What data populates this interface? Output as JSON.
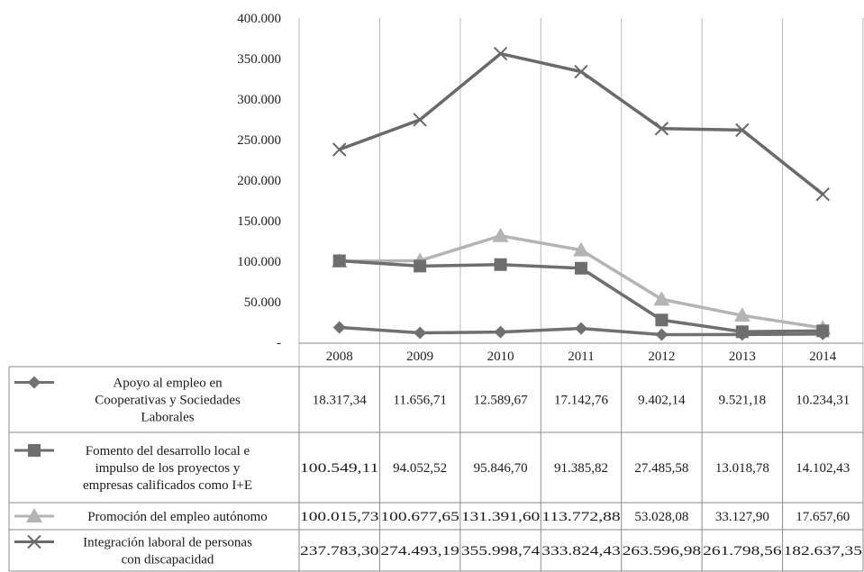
{
  "chart_data": {
    "type": "line",
    "title": "",
    "xlabel": "",
    "ylabel": "",
    "ylim": [
      0,
      400000
    ],
    "y_ticks": [
      "400.000",
      "350.000",
      "300.000",
      "250.000",
      "200.000",
      "150.000",
      "100.000",
      "50.000",
      "-"
    ],
    "y_tick_values": [
      400000,
      350000,
      300000,
      250000,
      200000,
      150000,
      100000,
      50000,
      0
    ],
    "categories": [
      "2008",
      "2009",
      "2010",
      "2011",
      "2012",
      "2013",
      "2014"
    ],
    "grid": "vertical",
    "legend": "data-table",
    "series": [
      {
        "name": "Apoyo al empleo en Cooperativas y Sociedades Laborales",
        "name_lines": [
          "Apoyo al empleo en",
          "Cooperativas y Sociedades",
          "Laborales"
        ],
        "marker": "diamond",
        "color": "#707070",
        "values": [
          18317.34,
          11656.71,
          12589.67,
          17142.76,
          9402.14,
          9521.18,
          10234.31
        ],
        "labels": [
          "18.317,34",
          "11.656,71",
          "12.589,67",
          "17.142,76",
          "9.402,14",
          "9.521,18",
          "10.234,31"
        ]
      },
      {
        "name": "Fomento del desarrollo local e impulso de los proyectos y empresas calificados como I+E",
        "name_lines": [
          "Fomento del desarrollo local e",
          "impulso de los proyectos y",
          "empresas calificados como I+E"
        ],
        "marker": "square",
        "color": "#6e6e6e",
        "values": [
          100549.11,
          94052.52,
          95846.7,
          91385.82,
          27485.58,
          13018.78,
          14102.43
        ],
        "labels": [
          "100.549,11",
          "94.052,52",
          "95.846,70",
          "91.385,82",
          "27.485,58",
          "13.018,78",
          "14.102,43"
        ]
      },
      {
        "name": "Promoción del empleo autónomo",
        "name_lines": [
          "Promoción del empleo autónomo"
        ],
        "marker": "triangle",
        "color": "#b4b4b4",
        "values": [
          100015.73,
          100677.65,
          131391.6,
          113772.88,
          53028.08,
          33127.9,
          17657.6
        ],
        "labels": [
          "100.015,73",
          "100.677,65",
          "131.391,60",
          "113.772,88",
          "53.028,08",
          "33.127,90",
          "17.657,60"
        ]
      },
      {
        "name": "Integración laboral de personas con discapacidad",
        "name_lines": [
          "Integración laboral de personas",
          "con discapacidad"
        ],
        "marker": "x",
        "color": "#6a6a6a",
        "values": [
          237783.3,
          274493.19,
          355998.74,
          333824.43,
          263596.98,
          261798.56,
          182637.35
        ],
        "labels": [
          "237.783,30",
          "274.493,19",
          "355.998,74",
          "333.824,43",
          "263.596,98",
          "261.798,56",
          "182.637,35"
        ]
      }
    ]
  }
}
